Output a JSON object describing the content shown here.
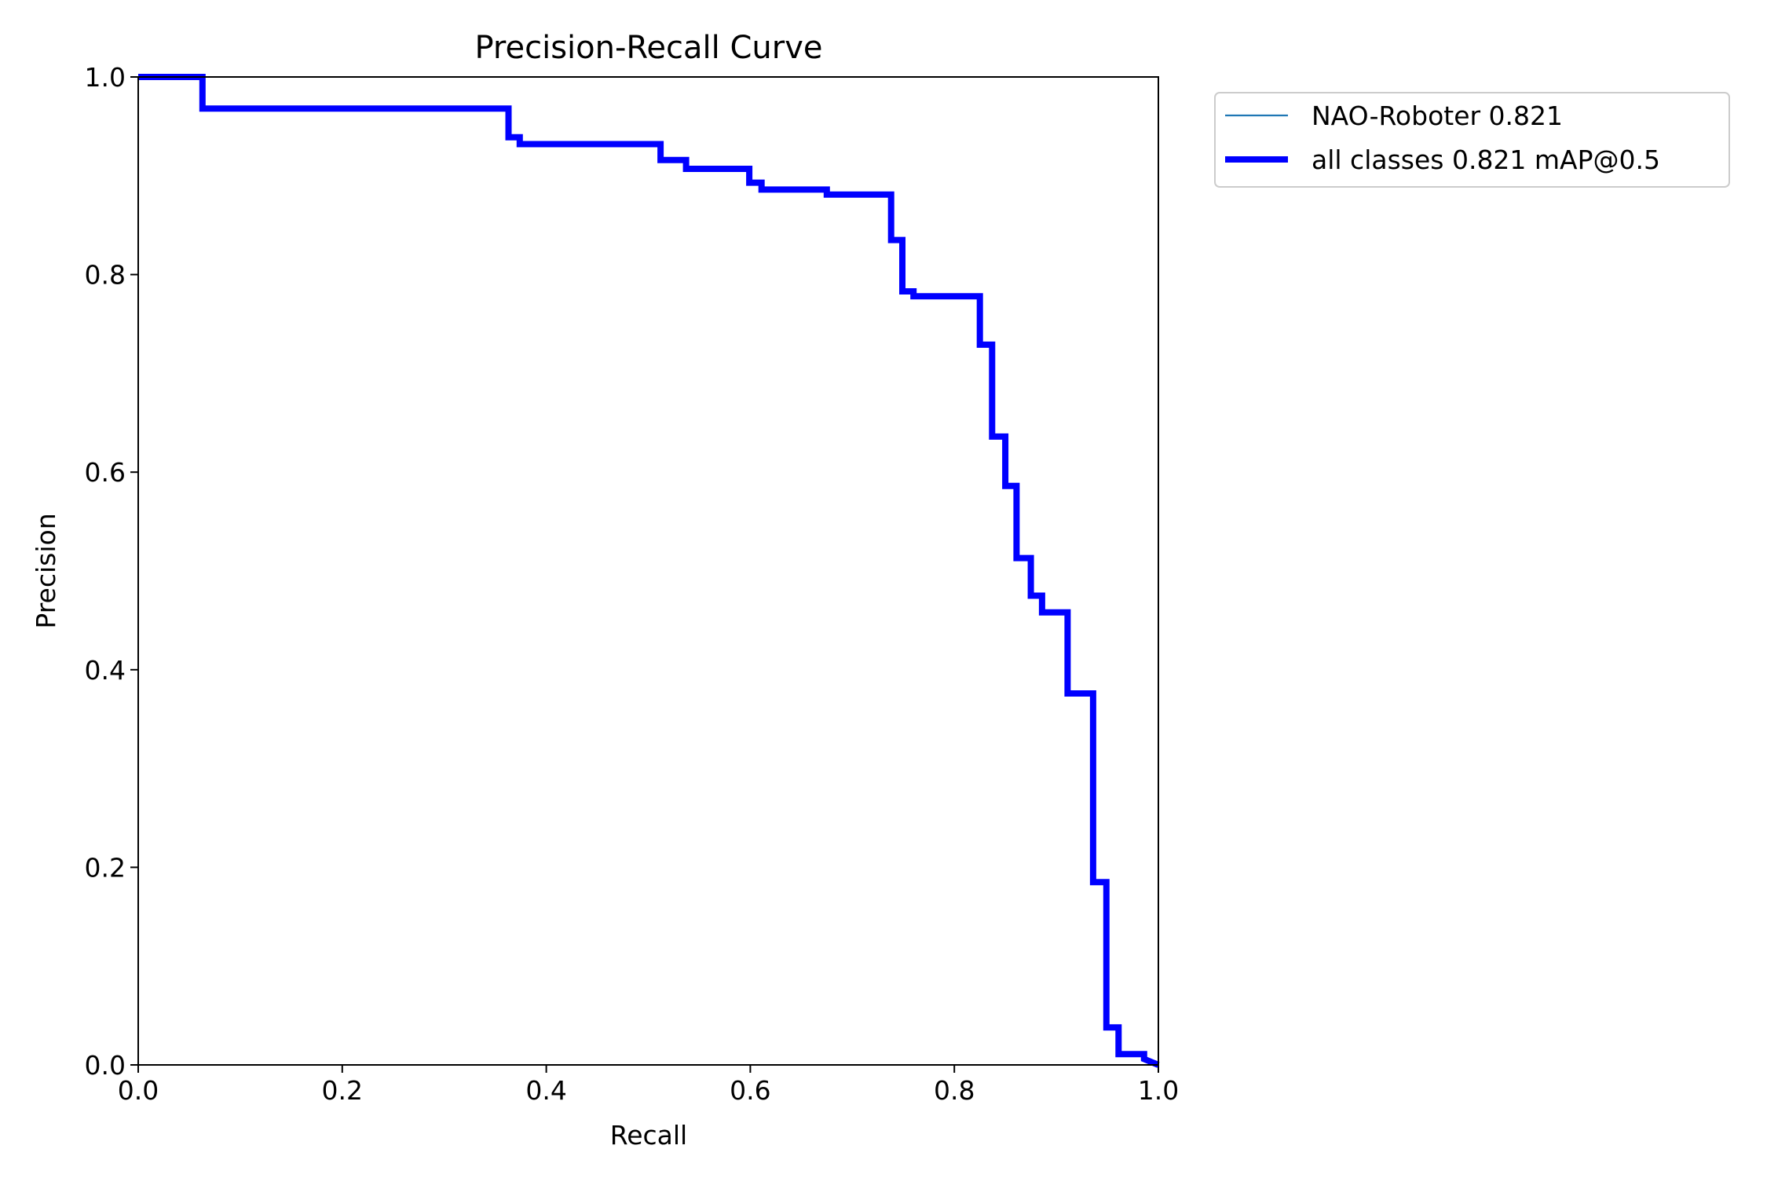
{
  "chart_data": {
    "type": "line",
    "title": "Precision-Recall Curve",
    "xlabel": "Recall",
    "ylabel": "Precision",
    "xlim": [
      0,
      1
    ],
    "ylim": [
      0,
      1
    ],
    "grid": false,
    "xticks": [
      "0.0",
      "0.2",
      "0.4",
      "0.6",
      "0.8",
      "1.0"
    ],
    "yticks": [
      "0.0",
      "0.2",
      "0.4",
      "0.6",
      "0.8",
      "1.0"
    ],
    "legend_placement": "outside-top-right",
    "series": [
      {
        "name": "NAO-Roboter 0.821",
        "color": "#1f77b4",
        "points": [
          [
            0,
            1.0
          ],
          [
            0.063,
            1.0
          ],
          [
            0.063,
            0.968
          ],
          [
            0.363,
            0.968
          ],
          [
            0.363,
            0.939
          ],
          [
            0.374,
            0.939
          ],
          [
            0.374,
            0.932
          ],
          [
            0.512,
            0.932
          ],
          [
            0.512,
            0.916
          ],
          [
            0.537,
            0.916
          ],
          [
            0.537,
            0.907
          ],
          [
            0.599,
            0.907
          ],
          [
            0.599,
            0.893
          ],
          [
            0.611,
            0.893
          ],
          [
            0.611,
            0.886
          ],
          [
            0.675,
            0.886
          ],
          [
            0.675,
            0.881
          ],
          [
            0.738,
            0.881
          ],
          [
            0.738,
            0.835
          ],
          [
            0.749,
            0.835
          ],
          [
            0.749,
            0.783
          ],
          [
            0.76,
            0.783
          ],
          [
            0.76,
            0.778
          ],
          [
            0.825,
            0.778
          ],
          [
            0.825,
            0.729
          ],
          [
            0.837,
            0.729
          ],
          [
            0.837,
            0.636
          ],
          [
            0.85,
            0.636
          ],
          [
            0.85,
            0.586
          ],
          [
            0.861,
            0.586
          ],
          [
            0.861,
            0.513
          ],
          [
            0.875,
            0.513
          ],
          [
            0.875,
            0.475
          ],
          [
            0.886,
            0.475
          ],
          [
            0.886,
            0.458
          ],
          [
            0.911,
            0.458
          ],
          [
            0.911,
            0.376
          ],
          [
            0.936,
            0.376
          ],
          [
            0.936,
            0.185
          ],
          [
            0.949,
            0.185
          ],
          [
            0.949,
            0.038
          ],
          [
            0.961,
            0.038
          ],
          [
            0.961,
            0.011
          ],
          [
            0.986,
            0.011
          ],
          [
            0.986,
            0.006
          ],
          [
            1.0,
            0.0
          ]
        ]
      },
      {
        "name": "all classes 0.821 mAP@0.5",
        "color": "#0000ff",
        "points": [
          [
            0,
            1.0
          ],
          [
            0.063,
            1.0
          ],
          [
            0.063,
            0.968
          ],
          [
            0.363,
            0.968
          ],
          [
            0.363,
            0.939
          ],
          [
            0.374,
            0.939
          ],
          [
            0.374,
            0.932
          ],
          [
            0.512,
            0.932
          ],
          [
            0.512,
            0.916
          ],
          [
            0.537,
            0.916
          ],
          [
            0.537,
            0.907
          ],
          [
            0.599,
            0.907
          ],
          [
            0.599,
            0.893
          ],
          [
            0.611,
            0.893
          ],
          [
            0.611,
            0.886
          ],
          [
            0.675,
            0.886
          ],
          [
            0.675,
            0.881
          ],
          [
            0.738,
            0.881
          ],
          [
            0.738,
            0.835
          ],
          [
            0.749,
            0.835
          ],
          [
            0.749,
            0.783
          ],
          [
            0.76,
            0.783
          ],
          [
            0.76,
            0.778
          ],
          [
            0.825,
            0.778
          ],
          [
            0.825,
            0.729
          ],
          [
            0.837,
            0.729
          ],
          [
            0.837,
            0.636
          ],
          [
            0.85,
            0.636
          ],
          [
            0.85,
            0.586
          ],
          [
            0.861,
            0.586
          ],
          [
            0.861,
            0.513
          ],
          [
            0.875,
            0.513
          ],
          [
            0.875,
            0.475
          ],
          [
            0.886,
            0.475
          ],
          [
            0.886,
            0.458
          ],
          [
            0.911,
            0.458
          ],
          [
            0.911,
            0.376
          ],
          [
            0.936,
            0.376
          ],
          [
            0.936,
            0.185
          ],
          [
            0.949,
            0.185
          ],
          [
            0.949,
            0.038
          ],
          [
            0.961,
            0.038
          ],
          [
            0.961,
            0.011
          ],
          [
            0.986,
            0.011
          ],
          [
            0.986,
            0.006
          ],
          [
            1.0,
            0.0
          ]
        ]
      }
    ]
  }
}
